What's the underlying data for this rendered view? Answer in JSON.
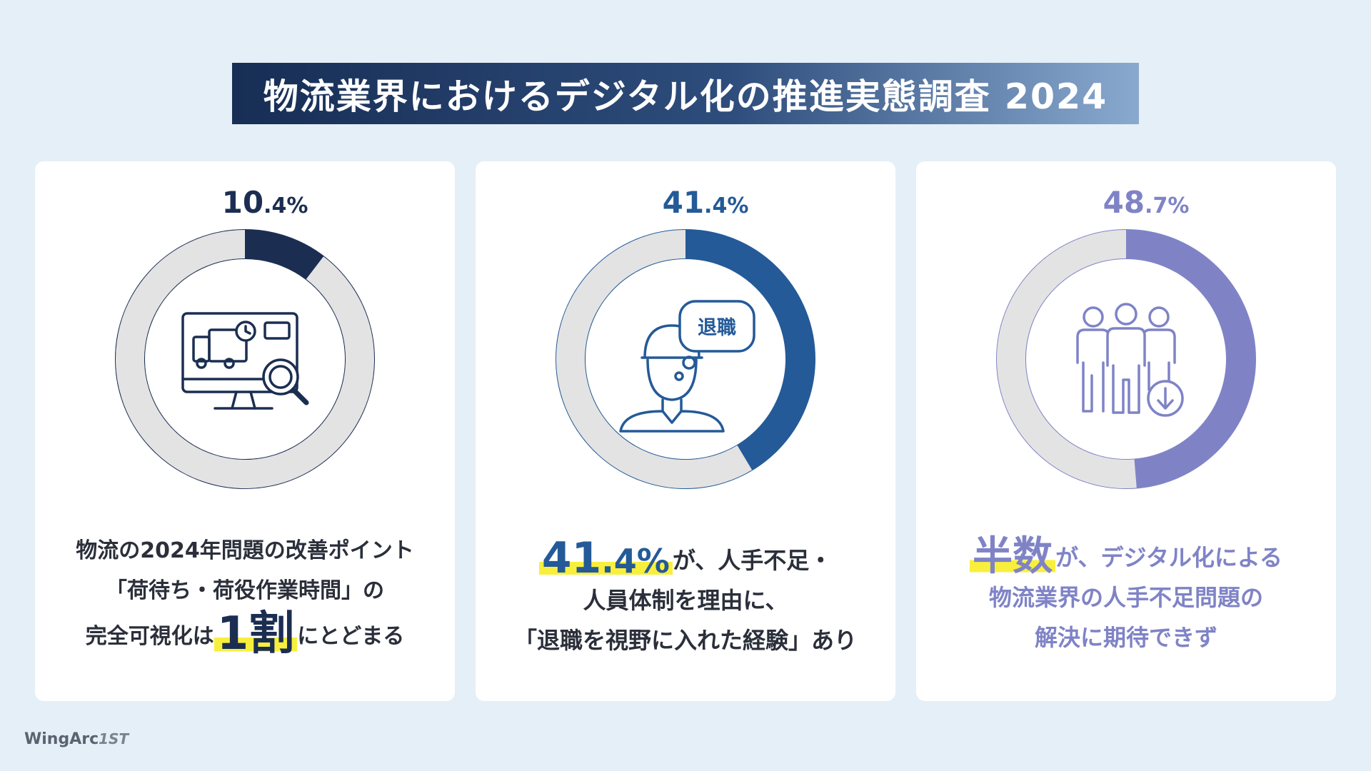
{
  "title": "物流業界におけるデジタル化の推進実態調査 2024",
  "brand": {
    "name": "WingArc",
    "mark": "1ST"
  },
  "colors": {
    "background": "#e4eff7",
    "track": "#e3e3e3",
    "chart1": "#1b2e52",
    "chart2": "#245a98",
    "chart3": "#7f83c6",
    "highlight": "#f8ef3c"
  },
  "chart_data": [
    {
      "type": "pie",
      "variant": "donut",
      "value": 10.4,
      "label_int": "10",
      "label_dec": ".4%",
      "icon": "monitor-truck-search-icon",
      "caption": {
        "line1": "物流の2024年問題の改善ポイント",
        "line2": "「荷待ち・荷役作業時間」の",
        "line3_pre": "完全可視化は",
        "line3_big": "1割",
        "line3_post": "にとどまる"
      }
    },
    {
      "type": "pie",
      "variant": "donut",
      "value": 41.4,
      "label_int": "41",
      "label_dec": ".4%",
      "icon": "worker-retire-bubble-icon",
      "bubble_text": "退職",
      "caption": {
        "line1_big_int": "41",
        "line1_big_dec": ".4%",
        "line1_post": "が、人手不足・",
        "line2": "人員体制を理由に、",
        "line3": "「退職を視野に入れた経験」あり"
      }
    },
    {
      "type": "pie",
      "variant": "donut",
      "value": 48.7,
      "label_int": "48",
      "label_dec": ".7%",
      "icon": "people-decrease-icon",
      "caption": {
        "line1_big": "半数",
        "line1_post": "が、デジタル化による",
        "line2": "物流業界の人手不足問題の",
        "line3": "解決に期待できず"
      }
    }
  ]
}
